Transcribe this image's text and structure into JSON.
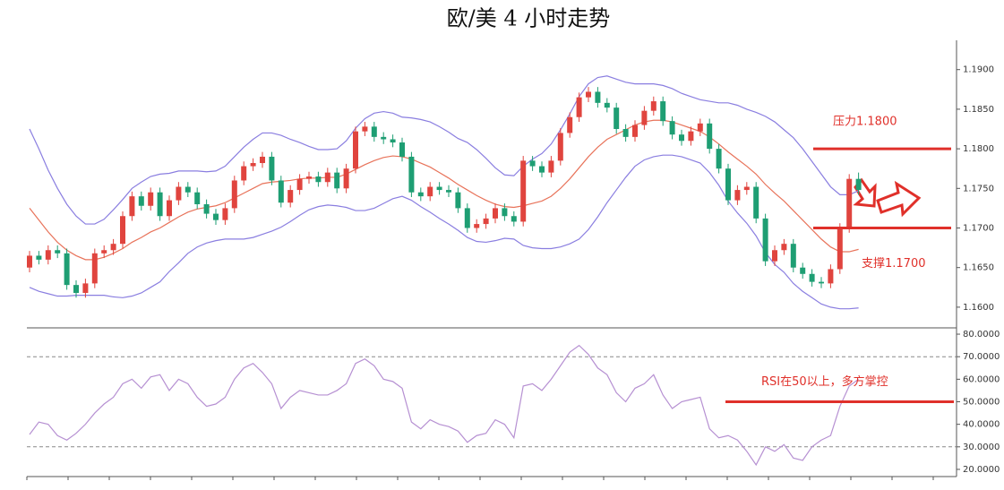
{
  "chart_data": [
    {
      "type": "candlestick",
      "title": "欧/美 4 小时走势",
      "open": [
        1.165,
        1.1665,
        1.166,
        1.1672,
        1.1668,
        1.1628,
        1.1618,
        1.163,
        1.1668,
        1.1672,
        1.168,
        1.1715,
        1.174,
        1.1728,
        1.1745,
        1.1715,
        1.1735,
        1.1752,
        1.1745,
        1.173,
        1.1718,
        1.171,
        1.1725,
        1.176,
        1.1778,
        1.1782,
        1.179,
        1.176,
        1.1732,
        1.1748,
        1.1762,
        1.1765,
        1.1758,
        1.177,
        1.175,
        1.1775,
        1.1822,
        1.1828,
        1.1815,
        1.1812,
        1.1808,
        1.179,
        1.1745,
        1.174,
        1.1752,
        1.1748,
        1.1745,
        1.1725,
        1.17,
        1.1705,
        1.1712,
        1.1725,
        1.1715,
        1.1708,
        1.1785,
        1.1778,
        1.177,
        1.1785,
        1.182,
        1.184,
        1.1865,
        1.1872,
        1.1858,
        1.1852,
        1.1825,
        1.1815,
        1.183,
        1.1848,
        1.186,
        1.1835,
        1.1818,
        1.181,
        1.1822,
        1.1832,
        1.18,
        1.1775,
        1.1735,
        1.1748,
        1.1752,
        1.1712,
        1.1658,
        1.1672,
        1.168,
        1.165,
        1.1642,
        1.1632,
        1.163,
        1.1648,
        1.17,
        1.1762
      ],
      "high": [
        1.1671,
        1.1671,
        1.1678,
        1.1678,
        1.1674,
        1.1634,
        1.1636,
        1.1674,
        1.1678,
        1.1686,
        1.1721,
        1.1746,
        1.1746,
        1.1751,
        1.1751,
        1.1741,
        1.1758,
        1.1758,
        1.1751,
        1.1736,
        1.1724,
        1.1731,
        1.1766,
        1.1784,
        1.1788,
        1.1796,
        1.1796,
        1.1766,
        1.1754,
        1.1768,
        1.1771,
        1.1771,
        1.1776,
        1.1776,
        1.1781,
        1.1828,
        1.1834,
        1.1834,
        1.1821,
        1.1818,
        1.1814,
        1.1796,
        1.1751,
        1.1758,
        1.1758,
        1.1754,
        1.1751,
        1.1731,
        1.1711,
        1.1718,
        1.1731,
        1.1731,
        1.1721,
        1.1791,
        1.1791,
        1.1784,
        1.1791,
        1.1826,
        1.1846,
        1.1871,
        1.1878,
        1.1878,
        1.1864,
        1.1858,
        1.1831,
        1.1836,
        1.1854,
        1.1866,
        1.1866,
        1.1841,
        1.1824,
        1.1828,
        1.1838,
        1.1838,
        1.1806,
        1.1781,
        1.1754,
        1.1758,
        1.1758,
        1.1718,
        1.1678,
        1.1686,
        1.1686,
        1.1656,
        1.1648,
        1.1638,
        1.1654,
        1.1706,
        1.1768,
        1.177
      ],
      "low": [
        1.1644,
        1.1654,
        1.1654,
        1.1662,
        1.1622,
        1.1612,
        1.1612,
        1.1624,
        1.1662,
        1.1666,
        1.1674,
        1.1709,
        1.1722,
        1.1722,
        1.1709,
        1.1709,
        1.1729,
        1.1739,
        1.1724,
        1.1712,
        1.1704,
        1.1704,
        1.1719,
        1.1754,
        1.1772,
        1.1776,
        1.1754,
        1.1726,
        1.1726,
        1.1742,
        1.1756,
        1.1752,
        1.1752,
        1.1744,
        1.1744,
        1.1769,
        1.1816,
        1.1809,
        1.1806,
        1.1802,
        1.1784,
        1.1739,
        1.1734,
        1.1734,
        1.1742,
        1.1739,
        1.1719,
        1.1694,
        1.1694,
        1.1699,
        1.1706,
        1.1709,
        1.1702,
        1.1702,
        1.1772,
        1.1764,
        1.1764,
        1.1779,
        1.1814,
        1.1834,
        1.1859,
        1.1852,
        1.1846,
        1.1819,
        1.1809,
        1.1809,
        1.1824,
        1.1842,
        1.1829,
        1.1812,
        1.1804,
        1.1804,
        1.1816,
        1.1794,
        1.1769,
        1.1729,
        1.1729,
        1.1742,
        1.1706,
        1.1652,
        1.1652,
        1.1666,
        1.1644,
        1.1636,
        1.1626,
        1.1624,
        1.1624,
        1.1642,
        1.1694,
        1.1742
      ],
      "close": [
        1.1665,
        1.166,
        1.1672,
        1.1668,
        1.1628,
        1.1618,
        1.163,
        1.1668,
        1.1672,
        1.168,
        1.1715,
        1.174,
        1.1728,
        1.1745,
        1.1715,
        1.1735,
        1.1752,
        1.1745,
        1.173,
        1.1718,
        1.171,
        1.1725,
        1.176,
        1.1778,
        1.1782,
        1.179,
        1.176,
        1.1732,
        1.1748,
        1.1762,
        1.1765,
        1.1758,
        1.177,
        1.175,
        1.1775,
        1.1822,
        1.1828,
        1.1815,
        1.1812,
        1.1808,
        1.179,
        1.1745,
        1.174,
        1.1752,
        1.1748,
        1.1745,
        1.1725,
        1.17,
        1.1705,
        1.1712,
        1.1725,
        1.1715,
        1.1708,
        1.1785,
        1.1778,
        1.177,
        1.1785,
        1.182,
        1.184,
        1.1865,
        1.1872,
        1.1858,
        1.1852,
        1.1825,
        1.1815,
        1.183,
        1.1848,
        1.186,
        1.1835,
        1.1818,
        1.181,
        1.1822,
        1.1832,
        1.18,
        1.1775,
        1.1735,
        1.1748,
        1.1752,
        1.1712,
        1.1658,
        1.1672,
        1.168,
        1.165,
        1.1642,
        1.1632,
        1.163,
        1.1648,
        1.17,
        1.1762,
        1.1748
      ],
      "up_color": "#e0443e",
      "down_color": "#1e9e73",
      "bands": [
        {
          "color": "#8a7ee0",
          "values": [
            1.1825,
            1.18,
            1.1773,
            1.175,
            1.173,
            1.1715,
            1.1705,
            1.1705,
            1.1711,
            1.1723,
            1.1736,
            1.175,
            1.1758,
            1.1765,
            1.1768,
            1.1769,
            1.1772,
            1.1772,
            1.1772,
            1.1771,
            1.1772,
            1.1778,
            1.179,
            1.1802,
            1.1812,
            1.182,
            1.182,
            1.1817,
            1.1812,
            1.1808,
            1.1803,
            1.1799,
            1.1799,
            1.18,
            1.181,
            1.1826,
            1.1838,
            1.1845,
            1.1847,
            1.1845,
            1.184,
            1.1839,
            1.1837,
            1.1834,
            1.1828,
            1.1821,
            1.1813,
            1.1808,
            1.1799,
            1.1788,
            1.1776,
            1.1767,
            1.1766,
            1.1778,
            1.1787,
            1.1794,
            1.1806,
            1.1824,
            1.1844,
            1.1866,
            1.1882,
            1.189,
            1.1892,
            1.1888,
            1.1884,
            1.1882,
            1.1882,
            1.1882,
            1.188,
            1.1876,
            1.187,
            1.1866,
            1.1862,
            1.186,
            1.1858,
            1.1858,
            1.1855,
            1.185,
            1.1846,
            1.1841,
            1.1834,
            1.1824,
            1.1814,
            1.18,
            1.1784,
            1.1768,
            1.1752,
            1.1742,
            1.1742,
            1.1747
          ]
        },
        {
          "color": "#e8735a",
          "values": [
            1.1725,
            1.171,
            1.1695,
            1.1682,
            1.1672,
            1.1665,
            1.166,
            1.166,
            1.1663,
            1.1668,
            1.1674,
            1.1682,
            1.1688,
            1.1695,
            1.17,
            1.1707,
            1.1714,
            1.172,
            1.1724,
            1.1726,
            1.1728,
            1.1732,
            1.1738,
            1.1744,
            1.175,
            1.1756,
            1.1758,
            1.1759,
            1.176,
            1.1762,
            1.1763,
            1.1763,
            1.1764,
            1.1764,
            1.1768,
            1.1774,
            1.178,
            1.1785,
            1.1789,
            1.1791,
            1.179,
            1.1787,
            1.1782,
            1.1777,
            1.177,
            1.1763,
            1.1755,
            1.1748,
            1.1741,
            1.1735,
            1.173,
            1.1727,
            1.1726,
            1.1728,
            1.1731,
            1.1734,
            1.174,
            1.175,
            1.1762,
            1.1776,
            1.179,
            1.1802,
            1.1812,
            1.1818,
            1.1824,
            1.183,
            1.1834,
            1.1836,
            1.1836,
            1.1834,
            1.183,
            1.1826,
            1.1822,
            1.1815,
            1.1806,
            1.1796,
            1.1787,
            1.1778,
            1.1768,
            1.1755,
            1.1744,
            1.1734,
            1.1722,
            1.171,
            1.1698,
            1.1686,
            1.1676,
            1.167,
            1.167,
            1.1673
          ]
        },
        {
          "color": "#8a7ee0",
          "values": [
            1.1625,
            1.162,
            1.1617,
            1.1614,
            1.1614,
            1.1615,
            1.1615,
            1.1615,
            1.1615,
            1.1613,
            1.1612,
            1.1614,
            1.1618,
            1.1625,
            1.1632,
            1.1645,
            1.1656,
            1.1668,
            1.1676,
            1.1681,
            1.1684,
            1.1686,
            1.1686,
            1.1686,
            1.1688,
            1.1692,
            1.1696,
            1.1701,
            1.1708,
            1.1716,
            1.1723,
            1.1727,
            1.1729,
            1.1728,
            1.1726,
            1.1722,
            1.1722,
            1.1725,
            1.1731,
            1.1737,
            1.174,
            1.1735,
            1.1727,
            1.172,
            1.1712,
            1.1705,
            1.1697,
            1.1688,
            1.1683,
            1.1682,
            1.1684,
            1.1687,
            1.1686,
            1.1678,
            1.1675,
            1.1674,
            1.1674,
            1.1676,
            1.168,
            1.1686,
            1.1698,
            1.1714,
            1.1732,
            1.1748,
            1.1764,
            1.1778,
            1.1786,
            1.179,
            1.1792,
            1.1792,
            1.179,
            1.1786,
            1.1782,
            1.177,
            1.1754,
            1.1734,
            1.1719,
            1.1706,
            1.169,
            1.1669,
            1.1654,
            1.1644,
            1.163,
            1.162,
            1.1612,
            1.1604,
            1.16,
            1.1598,
            1.1598,
            1.1599
          ]
        }
      ],
      "ylim": [
        1.1575,
        1.1937
      ],
      "yticks": [
        {
          "value": 1.16,
          "label": "1.1600"
        },
        {
          "value": 1.165,
          "label": "1.1650"
        },
        {
          "value": 1.17,
          "label": "1.1700"
        },
        {
          "value": 1.175,
          "label": "1.1750"
        },
        {
          "value": 1.18,
          "label": "1.1800"
        },
        {
          "value": 1.185,
          "label": "1.1850"
        },
        {
          "value": 1.19,
          "label": "1.1900"
        }
      ],
      "annotations": [
        {
          "text": "压力1.1800",
          "value": 1.18
        },
        {
          "text": "支撑1.1700",
          "value": 1.17
        }
      ],
      "annotation_color": "#e0302a"
    },
    {
      "type": "line",
      "color": "#b690d2",
      "values": [
        35.5,
        41,
        40,
        35,
        33,
        36,
        40,
        45,
        49,
        52,
        58,
        60,
        56,
        61,
        62,
        55,
        60,
        58,
        52,
        48,
        49,
        52,
        60,
        65,
        67,
        63,
        58,
        47,
        52,
        55,
        54,
        53,
        53,
        55,
        58,
        67,
        69,
        66,
        60,
        59,
        56,
        41,
        38,
        42,
        40,
        39,
        37,
        32,
        35,
        36,
        42,
        40,
        34,
        57,
        58,
        55,
        60,
        66,
        72,
        75,
        71,
        65,
        62,
        54,
        50,
        56,
        58,
        62,
        53,
        47,
        50,
        51,
        52,
        38,
        34,
        35,
        33,
        28,
        22,
        30,
        28,
        31,
        25,
        24,
        30,
        33,
        35,
        48,
        57,
        60
      ],
      "ylim": [
        17.6,
        82.4
      ],
      "yticks": [
        {
          "value": 20,
          "label": "20.0000"
        },
        {
          "value": 30,
          "label": "30.0000"
        },
        {
          "value": 40,
          "label": "40.0000"
        },
        {
          "value": 50,
          "label": "50.0000"
        },
        {
          "value": 60,
          "label": "60.0000"
        },
        {
          "value": 70,
          "label": "70.0000"
        },
        {
          "value": 80,
          "label": "80.0000"
        }
      ],
      "reference_lines": [
        30,
        70
      ],
      "annotations": [
        {
          "text": "RSI在50以上，多方掌控",
          "value": 50
        }
      ],
      "annotation_color": "#e0302a"
    }
  ]
}
